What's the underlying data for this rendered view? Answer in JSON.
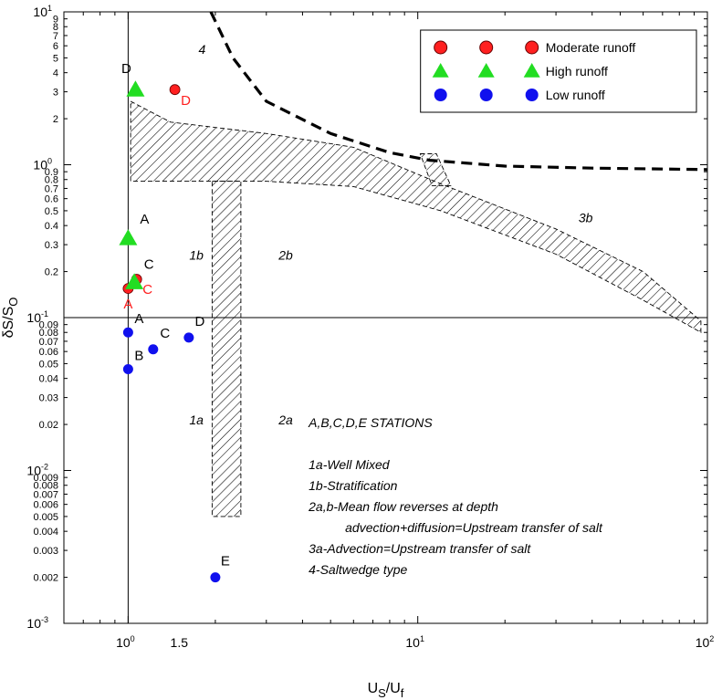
{
  "chart_data": {
    "type": "scatter",
    "x_scale": "log",
    "y_scale": "log",
    "xlim": [
      0.6,
      100
    ],
    "ylim": [
      0.001,
      10
    ],
    "xlabel": {
      "main": "U",
      "sub1": "S",
      "mid": "/U",
      "sub2": "f"
    },
    "ylabel": {
      "main": "δS/S",
      "sub": "O"
    },
    "x_major_ticks": [
      {
        "value": 1,
        "base": "10",
        "exp": "0"
      },
      {
        "value": 10,
        "base": "10",
        "exp": "1"
      },
      {
        "value": 100,
        "base": "10",
        "exp": "2"
      }
    ],
    "x_extra_label": {
      "value": 1.5,
      "text": "1.5"
    },
    "y_major_ticks": [
      {
        "value": 0.001,
        "base": "10",
        "exp": "-3"
      },
      {
        "value": 0.01,
        "base": "10",
        "exp": "-2"
      },
      {
        "value": 0.1,
        "base": "10",
        "exp": "-1"
      },
      {
        "value": 1,
        "base": "10",
        "exp": "0"
      },
      {
        "value": 10,
        "base": "10",
        "exp": "1"
      }
    ],
    "y_minor_labels": [
      {
        "value": 0.002,
        "text": "0.002"
      },
      {
        "value": 0.003,
        "text": "0.003"
      },
      {
        "value": 0.004,
        "text": "0.004"
      },
      {
        "value": 0.005,
        "text": "0.005"
      },
      {
        "value": 0.006,
        "text": "0.006"
      },
      {
        "value": 0.007,
        "text": "0.007"
      },
      {
        "value": 0.008,
        "text": "0.008"
      },
      {
        "value": 0.009,
        "text": "0.009"
      },
      {
        "value": 0.02,
        "text": "0.02"
      },
      {
        "value": 0.03,
        "text": "0.03"
      },
      {
        "value": 0.04,
        "text": "0.04"
      },
      {
        "value": 0.05,
        "text": "0.05"
      },
      {
        "value": 0.06,
        "text": "0.06"
      },
      {
        "value": 0.07,
        "text": "0.07"
      },
      {
        "value": 0.08,
        "text": "0.08"
      },
      {
        "value": 0.09,
        "text": "0.09"
      },
      {
        "value": 0.2,
        "text": "0.2"
      },
      {
        "value": 0.3,
        "text": "0.3"
      },
      {
        "value": 0.4,
        "text": "0.4"
      },
      {
        "value": 0.5,
        "text": "0.5"
      },
      {
        "value": 0.6,
        "text": "0.6"
      },
      {
        "value": 0.7,
        "text": "0.7"
      },
      {
        "value": 0.8,
        "text": "0.8"
      },
      {
        "value": 0.9,
        "text": "0.9"
      },
      {
        "value": 2,
        "text": "2"
      },
      {
        "value": 3,
        "text": "3"
      },
      {
        "value": 4,
        "text": "4"
      },
      {
        "value": 5,
        "text": "5"
      },
      {
        "value": 6,
        "text": "6"
      },
      {
        "value": 7,
        "text": "7"
      },
      {
        "value": 8,
        "text": "8"
      },
      {
        "value": 9,
        "text": "9"
      }
    ],
    "reference_line_y": 0.1,
    "series": [
      {
        "name": "Moderate runoff",
        "marker": "circle",
        "color": "#ff2020",
        "label_color": "#ff2020",
        "points": [
          {
            "label": "A",
            "x": 1.0,
            "y": 0.155
          },
          {
            "label": "C",
            "x": 1.07,
            "y": 0.178
          },
          {
            "label": "D",
            "x": 1.45,
            "y": 3.1
          }
        ]
      },
      {
        "name": "High runoff",
        "marker": "triangle",
        "color": "#22dd22",
        "label_color": "#000000",
        "points": [
          {
            "label": "A",
            "x": 1.0,
            "y": 0.33
          },
          {
            "label": "C",
            "x": 1.05,
            "y": 0.17
          },
          {
            "label": "D",
            "x": 1.06,
            "y": 3.1
          }
        ]
      },
      {
        "name": "Low runoff",
        "marker": "circle",
        "color": "#1010ee",
        "label_color": "#000000",
        "points": [
          {
            "label": "A",
            "x": 1.0,
            "y": 0.08
          },
          {
            "label": "B",
            "x": 1.0,
            "y": 0.046
          },
          {
            "label": "C",
            "x": 1.22,
            "y": 0.062
          },
          {
            "label": "D",
            "x": 1.62,
            "y": 0.074
          },
          {
            "label": "E",
            "x": 2.0,
            "y": 0.002
          }
        ]
      }
    ],
    "hatched_bands": [
      {
        "name": "band-1b-2b",
        "points": [
          [
            1.02,
            2.6
          ],
          [
            1.4,
            1.9
          ],
          [
            3,
            1.6
          ],
          [
            6,
            1.3
          ],
          [
            12,
            0.75
          ],
          [
            30,
            0.38
          ],
          [
            60,
            0.2
          ],
          [
            95,
            0.095
          ],
          [
            95,
            0.08
          ],
          [
            60,
            0.13
          ],
          [
            30,
            0.26
          ],
          [
            12,
            0.5
          ],
          [
            6,
            0.72
          ],
          [
            3,
            0.78
          ],
          [
            1.4,
            0.78
          ],
          [
            1.02,
            0.78
          ]
        ]
      },
      {
        "name": "band-vertical",
        "points": [
          [
            1.95,
            0.78
          ],
          [
            2.45,
            0.78
          ],
          [
            2.45,
            0.005
          ],
          [
            1.95,
            0.005
          ]
        ]
      },
      {
        "name": "band-3a",
        "points": [
          [
            10.2,
            1.18
          ],
          [
            11.6,
            1.18
          ],
          [
            13,
            0.73
          ],
          [
            11.2,
            0.73
          ]
        ]
      }
    ],
    "saltwedge_boundary": {
      "style": "dashed",
      "points": [
        [
          1.93,
          10
        ],
        [
          2.3,
          5
        ],
        [
          3,
          2.6
        ],
        [
          5,
          1.6
        ],
        [
          8,
          1.2
        ],
        [
          11,
          1.07
        ],
        [
          20,
          0.98
        ],
        [
          40,
          0.95
        ],
        [
          100,
          0.93
        ]
      ]
    },
    "region_labels": [
      {
        "text": "1a",
        "x": 1.72,
        "y": 0.02
      },
      {
        "text": "1b",
        "x": 1.72,
        "y": 0.24
      },
      {
        "text": "2a",
        "x": 3.5,
        "y": 0.02
      },
      {
        "text": "2b",
        "x": 3.5,
        "y": 0.24
      },
      {
        "text": "3b",
        "x": 38,
        "y": 0.42
      },
      {
        "text": "4",
        "x": 1.8,
        "y": 5.3
      }
    ],
    "annotations": [
      "A,B,C,D,E STATIONS",
      "1a-Well Mixed",
      "1b-Stratification",
      "2a,b-Mean flow reverses at depth",
      "advection+diffusion=Upstream transfer of salt",
      "3a-Advection=Upstream transfer of salt",
      "4-Saltwedge type"
    ],
    "legend": {
      "position": "top-right",
      "entries": [
        "Moderate runoff",
        "High runoff",
        "Low runoff"
      ]
    }
  },
  "colors": {
    "moderate": "#ff2020",
    "high": "#22dd22",
    "low": "#1010ee"
  }
}
